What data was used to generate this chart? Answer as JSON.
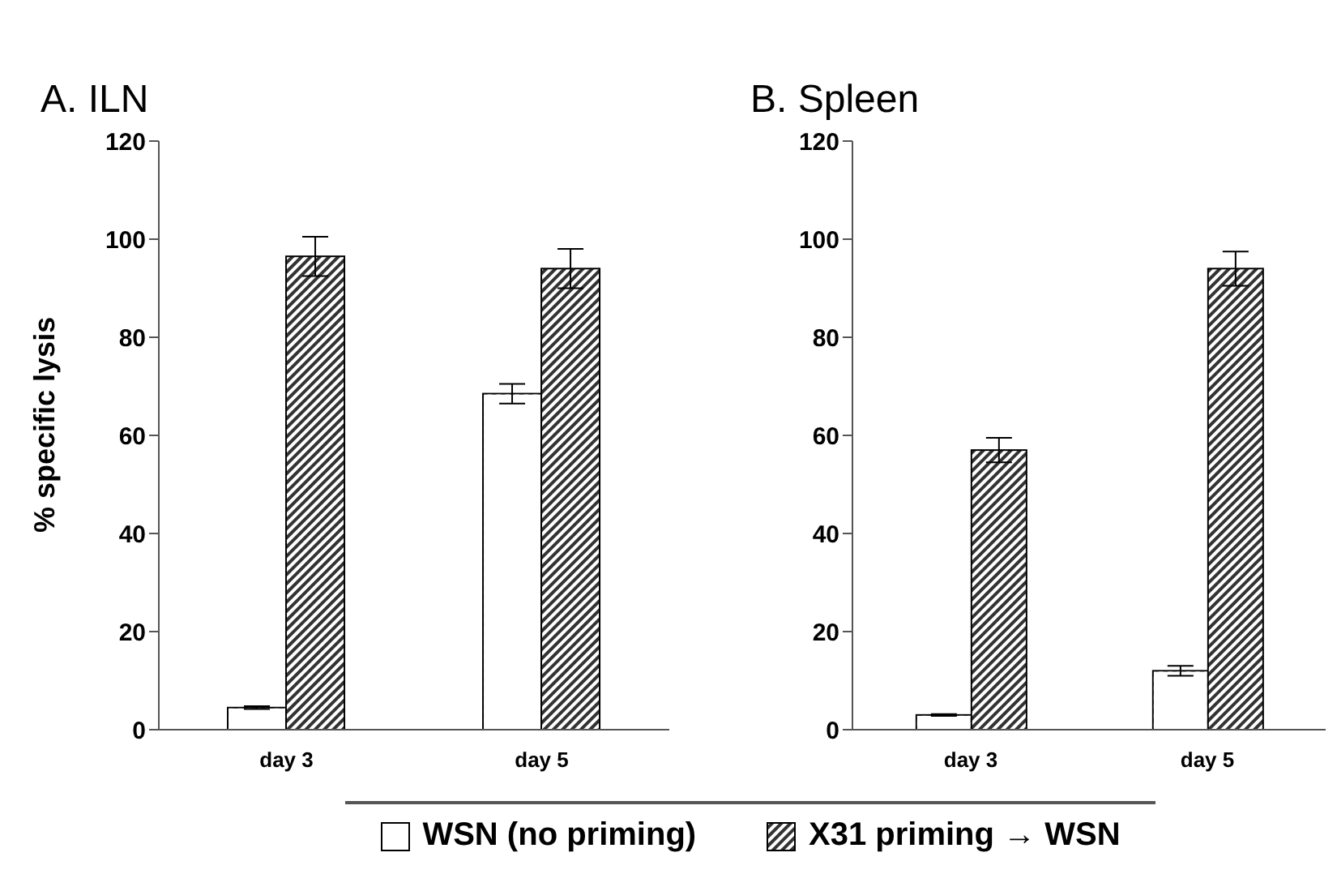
{
  "chart_data": [
    {
      "type": "bar",
      "title": "A. ILN",
      "ylabel": "% specific lysis",
      "categories": [
        "day 3",
        "day 5"
      ],
      "ylim": [
        0,
        120
      ],
      "yticks": [
        0,
        20,
        40,
        60,
        80,
        100,
        120
      ],
      "grid": false,
      "legend": "bottom",
      "series": [
        {
          "name": "WSN (no priming)",
          "color": "#ffffff",
          "values": [
            4.5,
            68.5
          ],
          "errors": [
            0.3,
            2
          ]
        },
        {
          "name": "X31 priming → WSN",
          "color": "#333333",
          "values": [
            96.5,
            94
          ],
          "errors": [
            4,
            4
          ]
        }
      ]
    },
    {
      "type": "bar",
      "title": "B. Spleen",
      "categories": [
        "day 3",
        "day 5"
      ],
      "ylim": [
        0,
        120
      ],
      "yticks": [
        0,
        20,
        40,
        60,
        80,
        100,
        120
      ],
      "grid": false,
      "series": [
        {
          "color": "#ffffff",
          "values": [
            3,
            12
          ],
          "errors": [
            0.2,
            1
          ]
        },
        {
          "color": "#333333",
          "values": [
            57,
            94
          ],
          "errors": [
            2.5,
            3.5
          ]
        }
      ]
    }
  ]
}
